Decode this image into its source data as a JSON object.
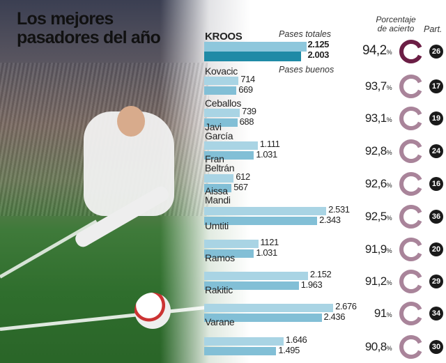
{
  "chart_data": {
    "type": "bar",
    "title": "Los mejores pasadores del año",
    "series_labels": {
      "total": "Pases totales",
      "good": "Pases buenos"
    },
    "pct_header": "Porcentaje de acierto",
    "matches_header": "Part.",
    "colors": {
      "total": "#a9d4e4",
      "good": "#82bfd6",
      "kroos_total": "#8ec7dc",
      "kroos_good": "#1f8aa6",
      "ring_top": "#6b1e45",
      "ring": "#a9849a"
    },
    "players": [
      {
        "name": "KROOS",
        "total": 2125,
        "good": 2003,
        "total_label": "2.125",
        "good_label": "2.003",
        "pct": "94,2",
        "matches": "26",
        "highlight": true
      },
      {
        "name": "Kovacic",
        "total": 714,
        "good": 669,
        "total_label": "714",
        "good_label": "669",
        "pct": "93,7",
        "matches": "17"
      },
      {
        "name": "Ceballos",
        "total": 739,
        "good": 688,
        "total_label": "739",
        "good_label": "688",
        "pct": "93,1",
        "matches": "19"
      },
      {
        "name": "Javi\nGarcía",
        "total": 1111,
        "good": 1031,
        "total_label": "1.111",
        "good_label": "1.031",
        "pct": "92,8",
        "matches": "24"
      },
      {
        "name": "Fran\nBeltrán",
        "total": 612,
        "good": 567,
        "total_label": "612",
        "good_label": "567",
        "pct": "92,6",
        "matches": "16"
      },
      {
        "name": "Aissa\nMandi",
        "total": 2531,
        "good": 2343,
        "total_label": "2.531",
        "good_label": "2.343",
        "pct": "92,5",
        "matches": "36"
      },
      {
        "name": "Umtiti",
        "total": 1121,
        "good": 1031,
        "total_label": "1121",
        "good_label": "1.031",
        "pct": "91,9",
        "matches": "20"
      },
      {
        "name": "Ramos",
        "total": 2152,
        "good": 1963,
        "total_label": "2.152",
        "good_label": "1.963",
        "pct": "91,2",
        "matches": "29"
      },
      {
        "name": "Rakitic",
        "total": 2676,
        "good": 2436,
        "total_label": "2.676",
        "good_label": "2.436",
        "pct": "91",
        "matches": "34"
      },
      {
        "name": "Varane",
        "total": 1646,
        "good": 1495,
        "total_label": "1.646",
        "good_label": "1.495",
        "pct": "90,8",
        "matches": "30"
      }
    ]
  }
}
